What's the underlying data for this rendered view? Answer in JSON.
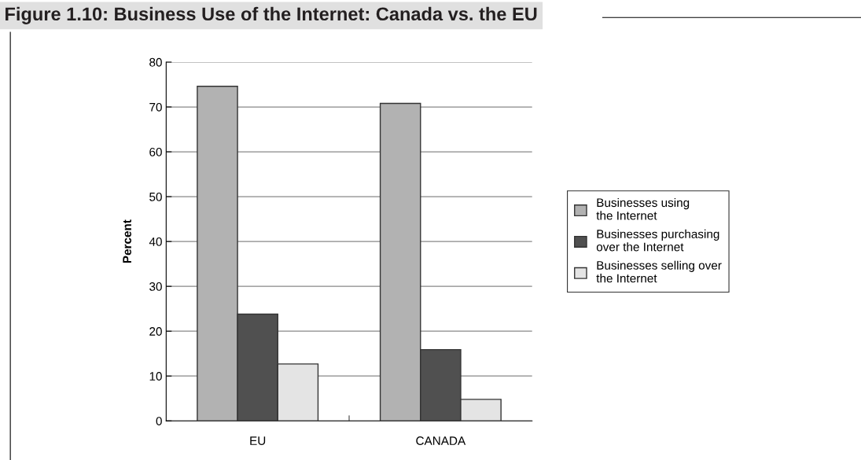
{
  "chart_data": {
    "type": "bar",
    "title": "Figure 1.10: Business Use of the Internet: Canada vs. the EU",
    "ylabel": "Percent",
    "categories": [
      "EU",
      "CANADA"
    ],
    "series": [
      {
        "name": "Businesses using\nthe Internet",
        "color": "#b2b2b2",
        "values": [
          74.6,
          70.8
        ]
      },
      {
        "name": "Businesses purchasing\nover the Internet",
        "color": "#505050",
        "values": [
          23.8,
          15.9
        ]
      },
      {
        "name": "Businesses selling over\nthe Internet",
        "color": "#e4e4e4",
        "values": [
          12.7,
          4.8
        ]
      }
    ],
    "ylim": [
      0,
      80
    ],
    "yticks": [
      0,
      10,
      20,
      30,
      40,
      50,
      60,
      70,
      80
    ],
    "grid": "y",
    "legend": "right"
  }
}
